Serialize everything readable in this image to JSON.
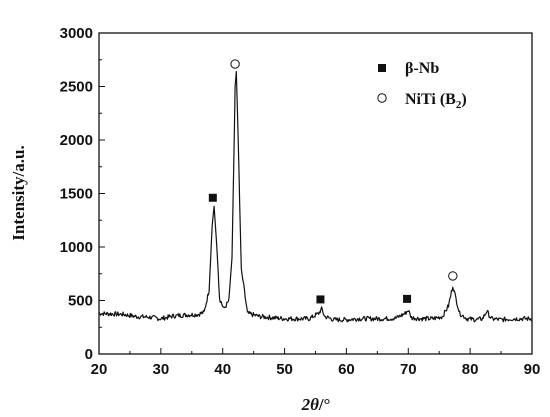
{
  "chart_data": {
    "type": "line",
    "xlabel_var": "2θ",
    "xlabel_unit": "/°",
    "ylabel": "Intensity/a.u.",
    "xlim": [
      20,
      90
    ],
    "ylim": [
      0,
      3000
    ],
    "xticks": [
      20,
      30,
      40,
      50,
      60,
      70,
      80,
      90
    ],
    "yticks": [
      0,
      500,
      1000,
      1500,
      2000,
      2500,
      3000
    ],
    "grid": false,
    "legend_position": "top-right",
    "series": [
      {
        "kind": "line",
        "x": [
          20,
          22,
          24,
          26,
          28,
          30,
          32,
          34,
          36,
          37,
          37.8,
          38.3,
          38.6,
          39.0,
          39.5,
          40.2,
          41.0,
          41.5,
          41.8,
          42.0,
          42.2,
          42.5,
          43.0,
          44.0,
          46,
          48,
          50,
          52,
          54,
          55.5,
          56.0,
          56.5,
          58,
          60,
          62,
          64,
          66,
          68,
          69.5,
          70.0,
          70.5,
          72,
          74,
          75.5,
          76.5,
          77.2,
          77.7,
          78.3,
          79.5,
          81,
          82.0,
          82.7,
          83.4,
          85,
          87,
          90
        ],
        "y": [
          380,
          375,
          370,
          350,
          345,
          330,
          355,
          365,
          370,
          390,
          600,
          1200,
          1380,
          1050,
          520,
          420,
          500,
          900,
          1800,
          2500,
          2640,
          2000,
          800,
          380,
          350,
          340,
          330,
          330,
          330,
          380,
          420,
          350,
          320,
          320,
          330,
          330,
          330,
          335,
          380,
          410,
          340,
          330,
          330,
          350,
          450,
          640,
          520,
          380,
          330,
          320,
          330,
          400,
          330,
          320,
          330,
          330
        ]
      },
      {
        "name": "β-Nb",
        "marker": "filled-square",
        "x": [
          38.4,
          55.8,
          69.8
        ],
        "y": [
          1460,
          510,
          515
        ]
      },
      {
        "name": "NiTi (B",
        "name_sub": "2",
        "name_suffix": ")",
        "marker": "open-circle",
        "x": [
          42.0,
          77.2
        ],
        "y": [
          2710,
          730
        ]
      }
    ]
  }
}
